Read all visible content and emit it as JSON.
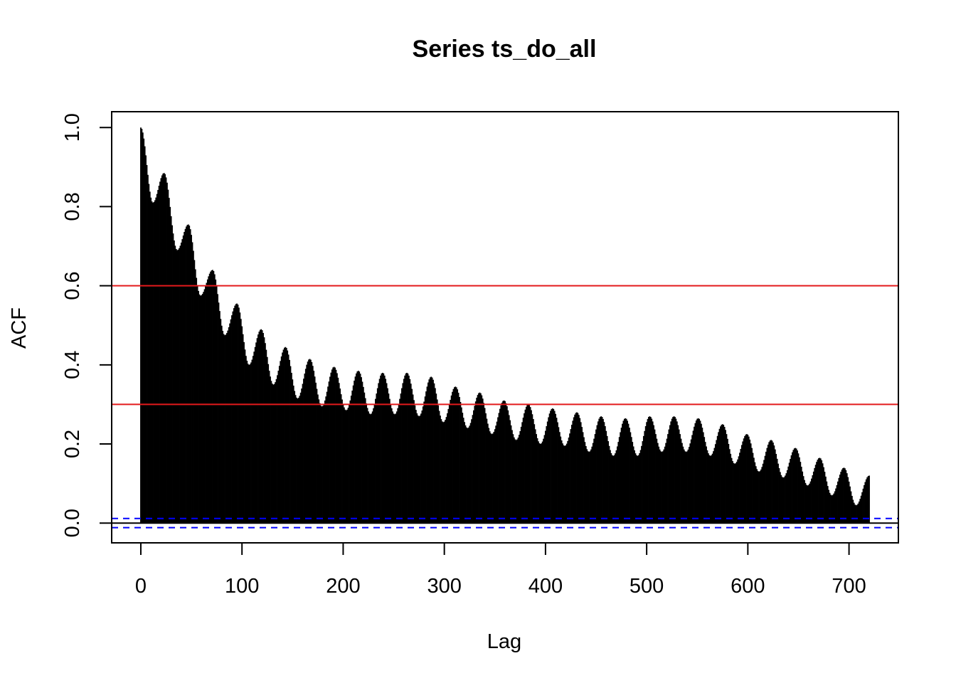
{
  "chart_data": {
    "type": "bar",
    "title": "Series  ts_do_all",
    "xlabel": "Lag",
    "ylabel": "ACF",
    "xlim": [
      -28.8,
      748.8
    ],
    "ylim": [
      -0.05,
      1.04
    ],
    "x_ticks": [
      0,
      100,
      200,
      300,
      400,
      500,
      600,
      700
    ],
    "y_ticks": [
      0.0,
      0.2,
      0.4,
      0.6,
      0.8,
      1.0
    ],
    "x_tick_labels": [
      "0",
      "100",
      "200",
      "300",
      "400",
      "500",
      "600",
      "700"
    ],
    "y_tick_labels": [
      "0.0",
      "0.2",
      "0.4",
      "0.6",
      "0.8",
      "1.0"
    ],
    "acf_envelope": {
      "lags": [
        0,
        12,
        23,
        36,
        47,
        59,
        71,
        83,
        95,
        107,
        119,
        131,
        143,
        155,
        167,
        179,
        191,
        203,
        215,
        227,
        239,
        251,
        263,
        275,
        287,
        299,
        311,
        323,
        335,
        347,
        359,
        371,
        383,
        395,
        407,
        419,
        431,
        443,
        455,
        467,
        479,
        491,
        503,
        515,
        527,
        539,
        551,
        563,
        575,
        587,
        599,
        611,
        623,
        635,
        647,
        659,
        671,
        683,
        695,
        707,
        720
      ],
      "values": [
        1.0,
        0.81,
        0.885,
        0.69,
        0.755,
        0.575,
        0.64,
        0.475,
        0.555,
        0.4,
        0.49,
        0.35,
        0.445,
        0.315,
        0.415,
        0.295,
        0.395,
        0.285,
        0.385,
        0.275,
        0.38,
        0.275,
        0.38,
        0.27,
        0.37,
        0.255,
        0.345,
        0.24,
        0.33,
        0.225,
        0.31,
        0.21,
        0.3,
        0.2,
        0.29,
        0.195,
        0.28,
        0.18,
        0.27,
        0.17,
        0.265,
        0.17,
        0.27,
        0.18,
        0.27,
        0.18,
        0.265,
        0.17,
        0.25,
        0.15,
        0.225,
        0.13,
        0.21,
        0.115,
        0.19,
        0.095,
        0.165,
        0.07,
        0.14,
        0.045,
        0.12
      ]
    },
    "hlines": [
      {
        "y": 0.6,
        "color": "#e31a1c",
        "style": "solid"
      },
      {
        "y": 0.3,
        "color": "#e31a1c",
        "style": "solid"
      },
      {
        "y": 0.0,
        "color": "#000000",
        "style": "solid"
      }
    ],
    "confidence_band": {
      "value": 0.0116,
      "color": "#0000ff",
      "style": "dashed"
    },
    "bar_color": "#000000",
    "grid": false,
    "legend": "none"
  }
}
